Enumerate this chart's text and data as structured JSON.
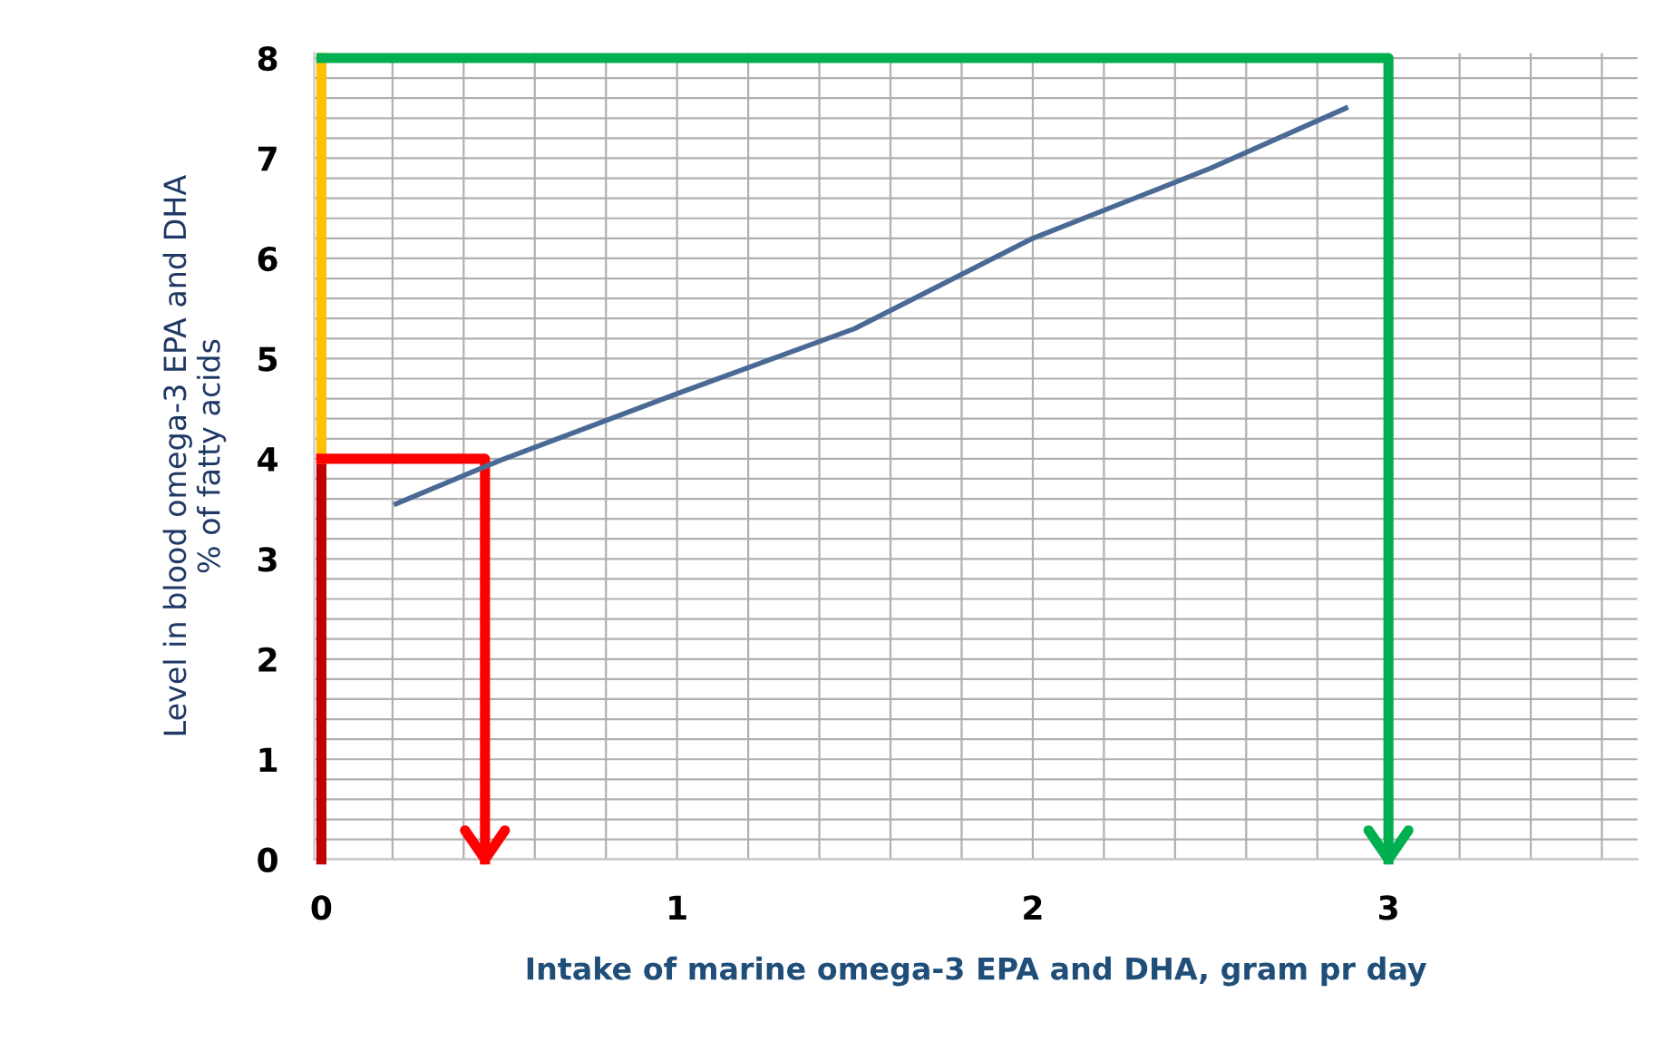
{
  "chart_data": {
    "type": "line",
    "xlabel": "Intake of marine omega-3 EPA and DHA, gram pr day",
    "ylabel": "Level in blood omega-3 EPA and DHA\n% of fatty acids",
    "xlim": [
      -0.02,
      3.7
    ],
    "ylim": [
      0,
      8.05
    ],
    "xticks": [
      0,
      {
        "value": 0.2,
        "label": null
      },
      {
        "value": 0.4,
        "label": null
      },
      {
        "value": 0.6,
        "label": null
      },
      {
        "value": 0.8,
        "label": null
      },
      1,
      {
        "value": 1.2,
        "label": null
      },
      {
        "value": 1.4,
        "label": null
      },
      {
        "value": 1.6,
        "label": null
      },
      {
        "value": 1.8,
        "label": null
      },
      2,
      {
        "value": 2.2,
        "label": null
      },
      {
        "value": 2.4,
        "label": null
      },
      {
        "value": 2.6,
        "label": null
      },
      {
        "value": 2.8,
        "label": null
      },
      3,
      {
        "value": 3.2,
        "label": null
      },
      {
        "value": 3.4,
        "label": null
      },
      {
        "value": 3.6,
        "label": null
      }
    ],
    "yticks": [
      0,
      {
        "value": 0.2,
        "label": null
      },
      {
        "value": 0.4,
        "label": null
      },
      {
        "value": 0.6,
        "label": null
      },
      {
        "value": 0.8,
        "label": null
      },
      1,
      {
        "value": 1.2,
        "label": null
      },
      {
        "value": 1.4,
        "label": null
      },
      {
        "value": 1.6,
        "label": null
      },
      {
        "value": 1.8,
        "label": null
      },
      2,
      {
        "value": 2.2,
        "label": null
      },
      {
        "value": 2.4,
        "label": null
      },
      {
        "value": 2.6,
        "label": null
      },
      {
        "value": 2.8,
        "label": null
      },
      3,
      {
        "value": 3.2,
        "label": null
      },
      {
        "value": 3.4,
        "label": null
      },
      {
        "value": 3.6,
        "label": null
      },
      {
        "value": 3.8,
        "label": null
      },
      4,
      {
        "value": 4.2,
        "label": null
      },
      {
        "value": 4.4,
        "label": null
      },
      {
        "value": 4.6,
        "label": null
      },
      {
        "value": 4.8,
        "label": null
      },
      5,
      {
        "value": 5.2,
        "label": null
      },
      {
        "value": 5.4,
        "label": null
      },
      {
        "value": 5.6,
        "label": null
      },
      {
        "value": 5.8,
        "label": null
      },
      6,
      {
        "value": 6.2,
        "label": null
      },
      {
        "value": 6.4,
        "label": null
      },
      {
        "value": 6.6,
        "label": null
      },
      {
        "value": 6.8,
        "label": null
      },
      7,
      {
        "value": 7.2,
        "label": null
      },
      {
        "value": 7.4,
        "label": null
      },
      {
        "value": 7.6,
        "label": null
      },
      {
        "value": 7.8,
        "label": null
      },
      8
    ],
    "grid": true,
    "series": [
      {
        "color": "#4a6a95",
        "x": [
          0.21,
          0.5,
          1.0,
          1.5,
          2.0,
          2.5,
          2.88
        ],
        "values": [
          3.55,
          3.98,
          4.65,
          5.3,
          6.2,
          6.9,
          7.5
        ]
      },
      {
        "color": "#c00000",
        "x": [
          0,
          0
        ],
        "values": [
          0,
          4
        ]
      },
      {
        "color": "#ffc000",
        "x": [
          0,
          0
        ],
        "values": [
          4,
          8
        ]
      },
      {
        "color": "#ff0000",
        "x": [
          0,
          0.46,
          0.46
        ],
        "values": [
          4,
          4,
          0
        ]
      },
      {
        "color": "#00b050",
        "x": [
          0,
          3,
          3
        ],
        "values": [
          8,
          8,
          0
        ]
      }
    ]
  }
}
